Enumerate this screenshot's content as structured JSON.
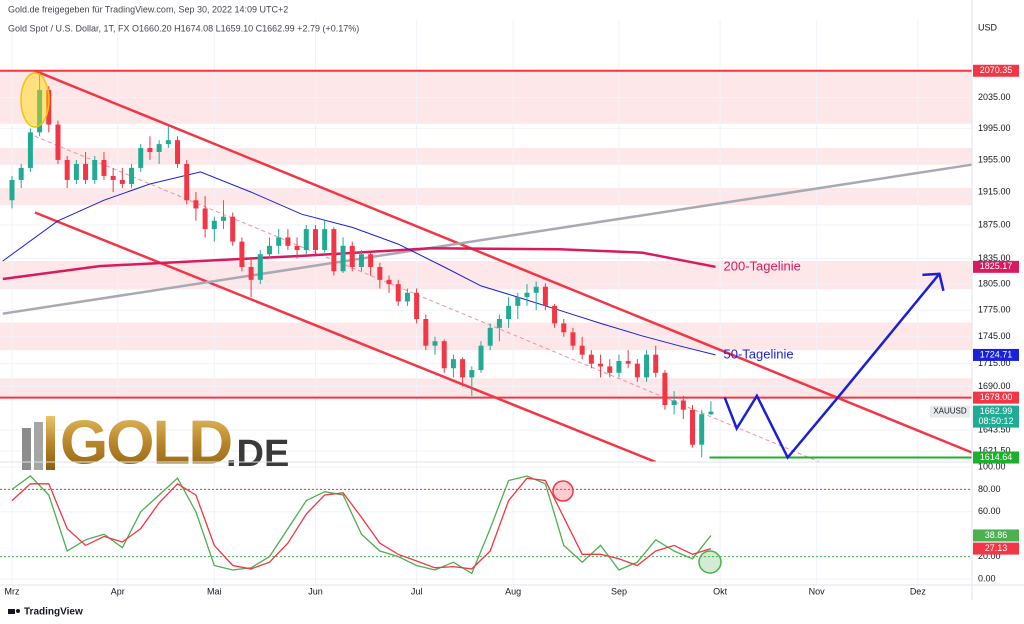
{
  "header": {
    "source": "Gold.de freigegeben für TradingView.com, Sep 30, 2022 14:09 UTC+2",
    "legend": "Gold Spot / U.S. Dollar, 1T, FX  O1660.20 H1674.08 L1659.10 C1662.99 +2.79 (+0.17%)",
    "currency": "USD",
    "symbol": "XAUUSD",
    "countdown": "08:50:12"
  },
  "logo": {
    "main": "GOLD",
    "suffix": ".DE"
  },
  "footer": "TradingView",
  "chart_data": [
    {
      "type": "candlestick",
      "log_scale": true,
      "grid": true,
      "up_color": "#22ab94",
      "down_color": "#f23645",
      "xlim": [
        -2,
        209
      ],
      "xticks": [
        {
          "value": 0,
          "label": "Mrz"
        },
        {
          "value": 23,
          "label": "Apr"
        },
        {
          "value": 44,
          "label": "Mai"
        },
        {
          "value": 66,
          "label": "Jun"
        },
        {
          "value": 88,
          "label": "Jul"
        },
        {
          "value": 109,
          "label": "Aug"
        },
        {
          "value": 132,
          "label": "Sep"
        },
        {
          "value": 154,
          "label": "Okt"
        },
        {
          "value": 175,
          "label": "Nov"
        },
        {
          "value": 197,
          "label": "Dez"
        }
      ],
      "ylim": [
        1610,
        2139
      ],
      "yticks": [
        {
          "value": 2035,
          "label": "2035.00"
        },
        {
          "value": 1995,
          "label": "1995.00"
        },
        {
          "value": 1955,
          "label": "1955.00"
        },
        {
          "value": 1915,
          "label": "1915.00"
        },
        {
          "value": 1875,
          "label": "1875.00"
        },
        {
          "value": 1835,
          "label": "1835.00"
        },
        {
          "value": 1805,
          "label": "1805.00"
        },
        {
          "value": 1775,
          "label": "1775.00"
        },
        {
          "value": 1745,
          "label": "1745.00"
        },
        {
          "value": 1715,
          "label": "1715.00"
        },
        {
          "value": 1690,
          "label": "1690.00"
        },
        {
          "value": 1643.5,
          "label": "1643.50"
        },
        {
          "value": 1621.5,
          "label": "1621.50"
        }
      ],
      "x": [
        0,
        2,
        4,
        6,
        8,
        10,
        12,
        14,
        16,
        18,
        20,
        22,
        24,
        26,
        28,
        30,
        32,
        34,
        36,
        38,
        40,
        42,
        44,
        46,
        48,
        50,
        52,
        54,
        56,
        58,
        60,
        62,
        64,
        66,
        68,
        70,
        72,
        74,
        76,
        78,
        80,
        82,
        84,
        86,
        88,
        90,
        92,
        94,
        96,
        98,
        100,
        102,
        104,
        106,
        108,
        110,
        112,
        114,
        116,
        118,
        120,
        122,
        124,
        126,
        128,
        130,
        132,
        134,
        136,
        138,
        140,
        142,
        144,
        146,
        148,
        150,
        152
      ],
      "open": [
        1905,
        1930,
        1945,
        1990,
        2045,
        2000,
        1955,
        1930,
        1950,
        1930,
        1955,
        1935,
        1930,
        1925,
        1945,
        1970,
        1965,
        1975,
        1980,
        1950,
        1905,
        1895,
        1870,
        1880,
        1885,
        1855,
        1825,
        1810,
        1840,
        1850,
        1860,
        1850,
        1845,
        1870,
        1845,
        1870,
        1820,
        1850,
        1825,
        1840,
        1825,
        1810,
        1805,
        1785,
        1795,
        1765,
        1735,
        1740,
        1710,
        1720,
        1700,
        1708,
        1735,
        1755,
        1765,
        1780,
        1790,
        1795,
        1802,
        1780,
        1760,
        1750,
        1735,
        1725,
        1715,
        1712,
        1705,
        1718,
        1715,
        1700,
        1725,
        1705,
        1670,
        1675,
        1665,
        1628,
        1660.2
      ],
      "high": [
        1935,
        1950,
        1995,
        2070,
        2050,
        2005,
        1960,
        1955,
        1965,
        1960,
        1965,
        1945,
        1945,
        1950,
        1975,
        1985,
        1980,
        1998,
        1985,
        1955,
        1915,
        1910,
        1885,
        1905,
        1890,
        1860,
        1835,
        1845,
        1860,
        1870,
        1870,
        1860,
        1875,
        1875,
        1880,
        1872,
        1860,
        1855,
        1845,
        1842,
        1830,
        1815,
        1810,
        1800,
        1800,
        1770,
        1745,
        1742,
        1725,
        1722,
        1712,
        1740,
        1760,
        1770,
        1790,
        1795,
        1805,
        1808,
        1806,
        1782,
        1765,
        1755,
        1745,
        1730,
        1725,
        1720,
        1725,
        1730,
        1720,
        1730,
        1735,
        1708,
        1685,
        1680,
        1670,
        1665,
        1674.08
      ],
      "low": [
        1895,
        1920,
        1940,
        1985,
        1990,
        1950,
        1920,
        1925,
        1925,
        1925,
        1930,
        1915,
        1920,
        1920,
        1940,
        1955,
        1950,
        1970,
        1945,
        1900,
        1880,
        1860,
        1855,
        1870,
        1850,
        1820,
        1790,
        1805,
        1835,
        1840,
        1845,
        1835,
        1840,
        1840,
        1842,
        1815,
        1818,
        1820,
        1820,
        1815,
        1800,
        1795,
        1780,
        1780,
        1760,
        1730,
        1725,
        1705,
        1700,
        1690,
        1680,
        1705,
        1730,
        1740,
        1755,
        1765,
        1780,
        1775,
        1775,
        1755,
        1745,
        1730,
        1720,
        1710,
        1700,
        1700,
        1700,
        1710,
        1695,
        1695,
        1700,
        1665,
        1660,
        1655,
        1625,
        1615,
        1659.1
      ],
      "close": [
        1930,
        1945,
        1990,
        2045,
        2000,
        1955,
        1930,
        1950,
        1930,
        1955,
        1935,
        1930,
        1925,
        1945,
        1970,
        1965,
        1975,
        1980,
        1950,
        1905,
        1895,
        1870,
        1880,
        1885,
        1855,
        1825,
        1810,
        1840,
        1850,
        1860,
        1850,
        1845,
        1870,
        1845,
        1870,
        1820,
        1850,
        1825,
        1840,
        1825,
        1810,
        1805,
        1785,
        1795,
        1765,
        1735,
        1740,
        1710,
        1720,
        1700,
        1708,
        1735,
        1755,
        1765,
        1780,
        1790,
        1795,
        1802,
        1780,
        1760,
        1750,
        1735,
        1725,
        1715,
        1712,
        1705,
        1718,
        1715,
        1700,
        1725,
        1705,
        1670,
        1675,
        1665,
        1628,
        1660.2,
        1662.99
      ],
      "series": [
        {
          "name": "200-Tagelinie",
          "color": "#d81b60",
          "x": [
            -2,
            19,
            41,
            63,
            91,
            119,
            137,
            153
          ],
          "values": [
            1811,
            1826,
            1832,
            1838,
            1847,
            1846,
            1842,
            1825.17
          ]
        },
        {
          "name": "50-Tagelinie",
          "color": "#1a1fd8",
          "x": [
            -2,
            10,
            20,
            30,
            41,
            52,
            63,
            74,
            84,
            94,
            102,
            110,
            119,
            128,
            137,
            145,
            153
          ],
          "values": [
            1832,
            1880,
            1905,
            1925,
            1940,
            1915,
            1888,
            1872,
            1852,
            1825,
            1803,
            1790,
            1775,
            1760,
            1746,
            1735,
            1724.71
          ]
        }
      ],
      "zones": [
        [
          2001,
          2070.35
        ],
        [
          1949,
          1970
        ],
        [
          1899,
          1920
        ],
        [
          1799,
          1832
        ],
        [
          1730,
          1761
        ],
        [
          1678,
          1699
        ]
      ],
      "zone_color": "#f23645",
      "levels": [
        {
          "value": 2070.35,
          "color": "#f23645"
        },
        {
          "value": 1678,
          "label": "1678.00",
          "color": "#f23645"
        },
        {
          "value": 1614.64,
          "color": "#1fae2f",
          "x_start": 151.7
        }
      ],
      "trendlines": [
        {
          "color": "#f23645",
          "x": [
            5,
            208.7
          ],
          "values": [
            2070.35,
            1620
          ]
        },
        {
          "color": "#f23645",
          "x": [
            5,
            140
          ],
          "values": [
            1890,
            1610
          ]
        },
        {
          "color": "#a9a9b3",
          "x": [
            -2,
            208.7
          ],
          "values": [
            1771,
            1949
          ]
        },
        {
          "color": "#f48fa0",
          "dashed": true,
          "x": [
            5,
            175.7
          ],
          "values": [
            1985,
            1610
          ]
        }
      ],
      "projection": {
        "color": "#1a1fd8",
        "x": [
          155,
          157.6,
          162,
          168.7,
          179.6,
          201.7
        ],
        "values": [
          1678,
          1645,
          1680,
          1614.64,
          1678,
          1817
        ]
      }
    },
    {
      "type": "line",
      "grid": true,
      "ylim": [
        -5.4,
        104.5
      ],
      "yticks": [
        {
          "value": 100,
          "label": "100.00"
        },
        {
          "value": 80,
          "label": "80.00"
        },
        {
          "value": 60,
          "label": "60.00"
        },
        {
          "value": 20,
          "label": "20.00"
        },
        {
          "value": 0,
          "label": "0.00"
        }
      ],
      "x": [
        0,
        4,
        8,
        12,
        16,
        20,
        24,
        28,
        32,
        36,
        40,
        44,
        48,
        52,
        56,
        60,
        64,
        68,
        72,
        76,
        80,
        84,
        88,
        92,
        96,
        100,
        104,
        108,
        112,
        116,
        120,
        124,
        128,
        132,
        136,
        140,
        144,
        148,
        152
      ],
      "series": [
        {
          "color": "#4caf50",
          "values": [
            80,
            92,
            75,
            25,
            35,
            40,
            28,
            60,
            75,
            90,
            60,
            12,
            8,
            10,
            20,
            45,
            70,
            78,
            75,
            40,
            25,
            20,
            12,
            8,
            15,
            5,
            45,
            88,
            92,
            85,
            30,
            15,
            30,
            8,
            15,
            35,
            25,
            18,
            38.86
          ]
        },
        {
          "color": "#f23645",
          "values": [
            70,
            85,
            85,
            45,
            30,
            38,
            33,
            45,
            68,
            85,
            75,
            30,
            12,
            9,
            15,
            32,
            58,
            75,
            77,
            55,
            32,
            22,
            16,
            10,
            11,
            9,
            25,
            70,
            90,
            88,
            55,
            22,
            22,
            18,
            12,
            25,
            30,
            22,
            27.13
          ]
        }
      ],
      "reference_lines": [
        {
          "value": 80,
          "color": "#f23645"
        },
        {
          "value": 20,
          "color": "#4caf50"
        }
      ]
    }
  ]
}
